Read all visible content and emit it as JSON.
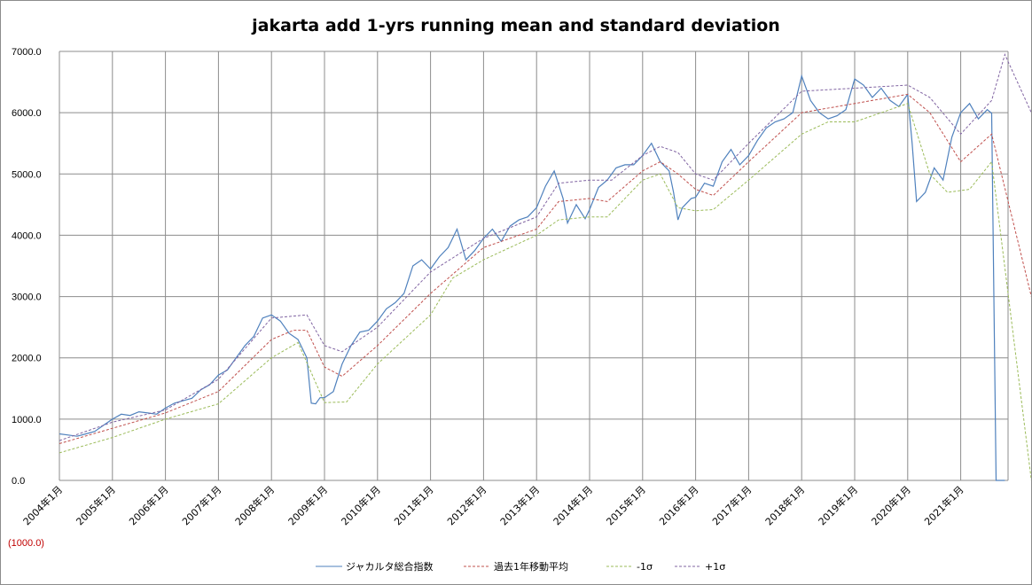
{
  "chart_data": {
    "type": "line",
    "title": "jakarta add 1-yrs running mean and standard deviation",
    "xlabel": "",
    "ylabel": "",
    "ylim": [
      -1000,
      7000
    ],
    "plot_ylim": [
      0,
      7000
    ],
    "y_ticks": [
      "7000.0",
      "6000.0",
      "5000.0",
      "4000.0",
      "3000.0",
      "2000.0",
      "1000.0",
      "0.0",
      "(1000.0)"
    ],
    "x_tick_labels": [
      "2004年1月",
      "2005年1月",
      "2006年1月",
      "2007年1月",
      "2008年1月",
      "2009年1月",
      "2010年1月",
      "2011年1月",
      "2012年1月",
      "2013年1月",
      "2014年1月",
      "2015年1月",
      "2016年1月",
      "2017年1月",
      "2018年1月",
      "2019年1月",
      "2020年1月",
      "2021年1月"
    ],
    "grid": true,
    "legend_position": "bottom",
    "series": [
      {
        "name": "ジャカルタ総合指数",
        "color": "#4f81bd",
        "dash": "solid",
        "points": [
          [
            "2004-01",
            760
          ],
          [
            "2004-03",
            740
          ],
          [
            "2004-05",
            720
          ],
          [
            "2004-07",
            760
          ],
          [
            "2004-09",
            800
          ],
          [
            "2004-11",
            900
          ],
          [
            "2005-01",
            1000
          ],
          [
            "2005-03",
            1080
          ],
          [
            "2005-05",
            1060
          ],
          [
            "2005-07",
            1120
          ],
          [
            "2005-09",
            1100
          ],
          [
            "2005-11",
            1080
          ],
          [
            "2006-01",
            1180
          ],
          [
            "2006-03",
            1260
          ],
          [
            "2006-05",
            1300
          ],
          [
            "2006-07",
            1340
          ],
          [
            "2006-09",
            1480
          ],
          [
            "2006-11",
            1560
          ],
          [
            "2007-01",
            1720
          ],
          [
            "2007-03",
            1800
          ],
          [
            "2007-05",
            2000
          ],
          [
            "2007-07",
            2200
          ],
          [
            "2007-09",
            2350
          ],
          [
            "2007-11",
            2650
          ],
          [
            "2008-01",
            2700
          ],
          [
            "2008-03",
            2600
          ],
          [
            "2008-05",
            2400
          ],
          [
            "2008-07",
            2300
          ],
          [
            "2008-09",
            2000
          ],
          [
            "2008-10",
            1260
          ],
          [
            "2008-11",
            1250
          ],
          [
            "2008-12",
            1350
          ],
          [
            "2009-01",
            1350
          ],
          [
            "2009-03",
            1450
          ],
          [
            "2009-05",
            1900
          ],
          [
            "2009-07",
            2200
          ],
          [
            "2009-09",
            2420
          ],
          [
            "2009-11",
            2450
          ],
          [
            "2010-01",
            2600
          ],
          [
            "2010-03",
            2800
          ],
          [
            "2010-05",
            2900
          ],
          [
            "2010-07",
            3050
          ],
          [
            "2010-09",
            3500
          ],
          [
            "2010-11",
            3600
          ],
          [
            "2011-01",
            3450
          ],
          [
            "2011-03",
            3650
          ],
          [
            "2011-05",
            3800
          ],
          [
            "2011-07",
            4100
          ],
          [
            "2011-09",
            3600
          ],
          [
            "2011-11",
            3750
          ],
          [
            "2012-01",
            3950
          ],
          [
            "2012-03",
            4100
          ],
          [
            "2012-05",
            3900
          ],
          [
            "2012-07",
            4150
          ],
          [
            "2012-09",
            4250
          ],
          [
            "2012-11",
            4300
          ],
          [
            "2013-01",
            4450
          ],
          [
            "2013-03",
            4800
          ],
          [
            "2013-05",
            5050
          ],
          [
            "2013-07",
            4600
          ],
          [
            "2013-08",
            4200
          ],
          [
            "2013-10",
            4500
          ],
          [
            "2013-12",
            4270
          ],
          [
            "2014-01",
            4420
          ],
          [
            "2014-03",
            4780
          ],
          [
            "2014-05",
            4900
          ],
          [
            "2014-07",
            5100
          ],
          [
            "2014-09",
            5150
          ],
          [
            "2014-11",
            5150
          ],
          [
            "2015-01",
            5300
          ],
          [
            "2015-03",
            5500
          ],
          [
            "2015-05",
            5200
          ],
          [
            "2015-07",
            5050
          ],
          [
            "2015-08",
            4700
          ],
          [
            "2015-09",
            4250
          ],
          [
            "2015-10",
            4450
          ],
          [
            "2015-12",
            4600
          ],
          [
            "2016-01",
            4620
          ],
          [
            "2016-03",
            4850
          ],
          [
            "2016-05",
            4800
          ],
          [
            "2016-07",
            5200
          ],
          [
            "2016-09",
            5400
          ],
          [
            "2016-11",
            5150
          ],
          [
            "2017-01",
            5300
          ],
          [
            "2017-03",
            5550
          ],
          [
            "2017-05",
            5750
          ],
          [
            "2017-07",
            5850
          ],
          [
            "2017-09",
            5900
          ],
          [
            "2017-11",
            6000
          ],
          [
            "2018-01",
            6600
          ],
          [
            "2018-03",
            6200
          ],
          [
            "2018-05",
            6000
          ],
          [
            "2018-07",
            5900
          ],
          [
            "2018-09",
            5950
          ],
          [
            "2018-11",
            6050
          ],
          [
            "2019-01",
            6550
          ],
          [
            "2019-03",
            6450
          ],
          [
            "2019-05",
            6250
          ],
          [
            "2019-07",
            6400
          ],
          [
            "2019-09",
            6200
          ],
          [
            "2019-11",
            6100
          ],
          [
            "2020-01",
            6300
          ],
          [
            "2020-02",
            5500
          ],
          [
            "2020-03",
            4550
          ],
          [
            "2020-05",
            4700
          ],
          [
            "2020-07",
            5100
          ],
          [
            "2020-09",
            4900
          ],
          [
            "2020-11",
            5600
          ],
          [
            "2021-01",
            6000
          ],
          [
            "2021-03",
            6150
          ],
          [
            "2021-05",
            5900
          ],
          [
            "2021-07",
            6050
          ],
          [
            "2021-08",
            5990
          ],
          [
            "2021-09",
            0
          ],
          [
            "2021-11",
            0
          ]
        ]
      },
      {
        "name": "過去1年移動平均",
        "color": "#c0504d",
        "dash": "dotted",
        "points": [
          [
            "2004-01",
            600
          ],
          [
            "2005-01",
            850
          ],
          [
            "2006-01",
            1100
          ],
          [
            "2007-01",
            1450
          ],
          [
            "2008-01",
            2300
          ],
          [
            "2008-06",
            2450
          ],
          [
            "2008-09",
            2450
          ],
          [
            "2009-01",
            1850
          ],
          [
            "2009-05",
            1700
          ],
          [
            "2010-01",
            2200
          ],
          [
            "2011-01",
            3050
          ],
          [
            "2012-01",
            3800
          ],
          [
            "2013-01",
            4100
          ],
          [
            "2013-06",
            4550
          ],
          [
            "2014-01",
            4600
          ],
          [
            "2014-05",
            4550
          ],
          [
            "2015-01",
            5050
          ],
          [
            "2015-05",
            5200
          ],
          [
            "2015-09",
            5000
          ],
          [
            "2016-01",
            4750
          ],
          [
            "2016-05",
            4650
          ],
          [
            "2017-01",
            5200
          ],
          [
            "2018-01",
            6000
          ],
          [
            "2019-01",
            6150
          ],
          [
            "2020-01",
            6300
          ],
          [
            "2020-06",
            6000
          ],
          [
            "2021-01",
            5200
          ],
          [
            "2021-08",
            5650
          ],
          [
            "2022-05",
            3000
          ]
        ]
      },
      {
        "name": "-1σ",
        "color": "#9bbb59",
        "dash": "dotted",
        "points": [
          [
            "2004-01",
            450
          ],
          [
            "2005-01",
            700
          ],
          [
            "2006-01",
            1000
          ],
          [
            "2007-01",
            1250
          ],
          [
            "2008-01",
            2000
          ],
          [
            "2008-07",
            2250
          ],
          [
            "2009-01",
            1270
          ],
          [
            "2009-06",
            1280
          ],
          [
            "2010-01",
            1900
          ],
          [
            "2011-01",
            2700
          ],
          [
            "2011-06",
            3300
          ],
          [
            "2012-01",
            3600
          ],
          [
            "2013-01",
            4000
          ],
          [
            "2013-06",
            4250
          ],
          [
            "2014-01",
            4300
          ],
          [
            "2014-05",
            4300
          ],
          [
            "2015-01",
            4900
          ],
          [
            "2015-05",
            5000
          ],
          [
            "2015-09",
            4450
          ],
          [
            "2016-01",
            4400
          ],
          [
            "2016-05",
            4420
          ],
          [
            "2017-01",
            4900
          ],
          [
            "2018-01",
            5650
          ],
          [
            "2018-07",
            5850
          ],
          [
            "2019-01",
            5850
          ],
          [
            "2020-01",
            6150
          ],
          [
            "2020-06",
            5000
          ],
          [
            "2020-10",
            4700
          ],
          [
            "2021-03",
            4750
          ],
          [
            "2021-08",
            5200
          ],
          [
            "2022-05",
            0
          ]
        ]
      },
      {
        "name": "+1σ",
        "color": "#8064a2",
        "dash": "dotted",
        "points": [
          [
            "2004-01",
            650
          ],
          [
            "2005-01",
            950
          ],
          [
            "2006-01",
            1150
          ],
          [
            "2007-01",
            1650
          ],
          [
            "2008-01",
            2650
          ],
          [
            "2008-09",
            2700
          ],
          [
            "2009-01",
            2200
          ],
          [
            "2009-05",
            2100
          ],
          [
            "2010-01",
            2500
          ],
          [
            "2011-01",
            3400
          ],
          [
            "2012-01",
            3950
          ],
          [
            "2013-01",
            4300
          ],
          [
            "2013-06",
            4850
          ],
          [
            "2014-01",
            4900
          ],
          [
            "2014-06",
            4900
          ],
          [
            "2015-01",
            5300
          ],
          [
            "2015-05",
            5450
          ],
          [
            "2015-09",
            5350
          ],
          [
            "2016-01",
            5000
          ],
          [
            "2016-05",
            4900
          ],
          [
            "2017-01",
            5500
          ],
          [
            "2018-01",
            6350
          ],
          [
            "2019-01",
            6400
          ],
          [
            "2020-01",
            6450
          ],
          [
            "2020-06",
            6250
          ],
          [
            "2021-01",
            5650
          ],
          [
            "2021-08",
            6200
          ],
          [
            "2021-11",
            6950
          ],
          [
            "2022-05",
            6000
          ]
        ]
      }
    ]
  }
}
